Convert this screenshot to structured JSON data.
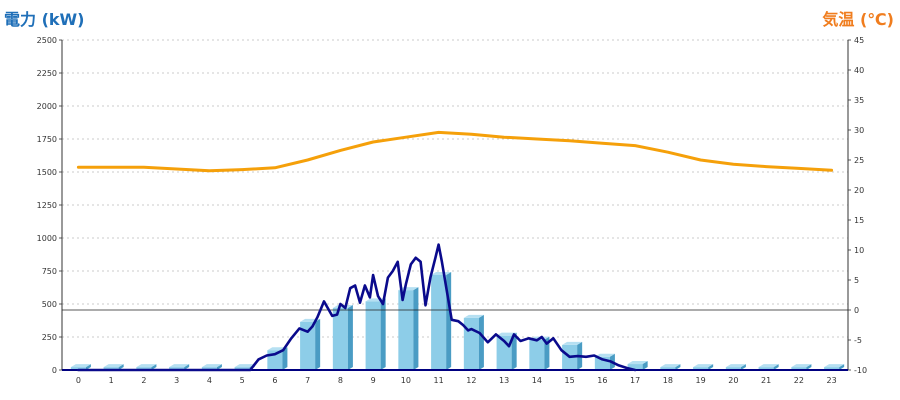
{
  "chart_data": {
    "type": "bar+line",
    "left_axis_title": "電力 (kW)",
    "right_axis_title": "気温 (℃)",
    "left_axis": {
      "ylim": [
        0,
        2500
      ],
      "ticks": [
        0,
        250,
        500,
        750,
        1000,
        1250,
        1500,
        1750,
        2000,
        2250,
        2500
      ]
    },
    "right_axis": {
      "ylim": [
        -10,
        45
      ],
      "ticks": [
        -10,
        -5,
        0,
        5,
        10,
        15,
        20,
        25,
        30,
        35,
        40,
        45
      ]
    },
    "x_ticks": [
      "0",
      "1",
      "2",
      "3",
      "4",
      "5",
      "6",
      "7",
      "8",
      "9",
      "10",
      "11",
      "12",
      "13",
      "14",
      "15",
      "16",
      "17",
      "18",
      "19",
      "20",
      "21",
      "22",
      "23"
    ],
    "reference_line_right_value": 0,
    "grid": true,
    "colors": {
      "bars": "#8dcde8",
      "bar_side": "#4a9cc4",
      "power_line": "#0a0a8c",
      "temperature_line": "#f5a00a",
      "left_title": "#1f6fb8",
      "right_title": "#f07d1e"
    },
    "bars_kw": [
      22,
      22,
      22,
      22,
      22,
      22,
      150,
      365,
      470,
      520,
      605,
      720,
      395,
      260,
      230,
      190,
      100,
      45,
      22,
      22,
      22,
      22,
      22,
      22
    ],
    "power_line_kw": {
      "x": [
        0,
        5,
        5.25,
        5.5,
        5.75,
        6,
        6.25,
        6.5,
        6.75,
        7,
        7.15,
        7.3,
        7.5,
        7.75,
        7.9,
        8,
        8.15,
        8.3,
        8.45,
        8.6,
        8.75,
        8.9,
        9,
        9.15,
        9.3,
        9.45,
        9.6,
        9.75,
        9.9,
        10,
        10.15,
        10.3,
        10.45,
        10.6,
        10.75,
        10.9,
        11,
        11.1,
        11.25,
        11.4,
        11.6,
        11.75,
        11.9,
        12,
        12.25,
        12.5,
        12.75,
        13,
        13.15,
        13.3,
        13.5,
        13.75,
        14,
        14.15,
        14.3,
        14.5,
        14.75,
        15,
        15.25,
        15.5,
        15.75,
        16,
        16.25,
        16.5,
        16.75,
        17
      ],
      "y": [
        0,
        0,
        0,
        80,
        110,
        120,
        150,
        240,
        315,
        290,
        330,
        400,
        520,
        410,
        420,
        500,
        470,
        620,
        640,
        510,
        640,
        550,
        720,
        560,
        500,
        700,
        750,
        820,
        530,
        650,
        800,
        850,
        820,
        490,
        700,
        850,
        950,
        820,
        600,
        380,
        370,
        340,
        300,
        310,
        280,
        210,
        270,
        220,
        180,
        270,
        220,
        240,
        225,
        250,
        200,
        240,
        150,
        100,
        105,
        100,
        110,
        80,
        65,
        35,
        15,
        0
      ]
    },
    "temperature_c": {
      "x": [
        0,
        2,
        3,
        4,
        5,
        6,
        7,
        8,
        9,
        10,
        11,
        12,
        13,
        14,
        15,
        16,
        17,
        18,
        19,
        20,
        21,
        22,
        23
      ],
      "y": [
        23.8,
        23.8,
        23.5,
        23.2,
        23.4,
        23.7,
        25.0,
        26.6,
        28.0,
        28.8,
        29.6,
        29.3,
        28.8,
        28.5,
        28.2,
        27.8,
        27.4,
        26.3,
        25.0,
        24.3,
        23.9,
        23.6,
        23.3
      ]
    }
  }
}
